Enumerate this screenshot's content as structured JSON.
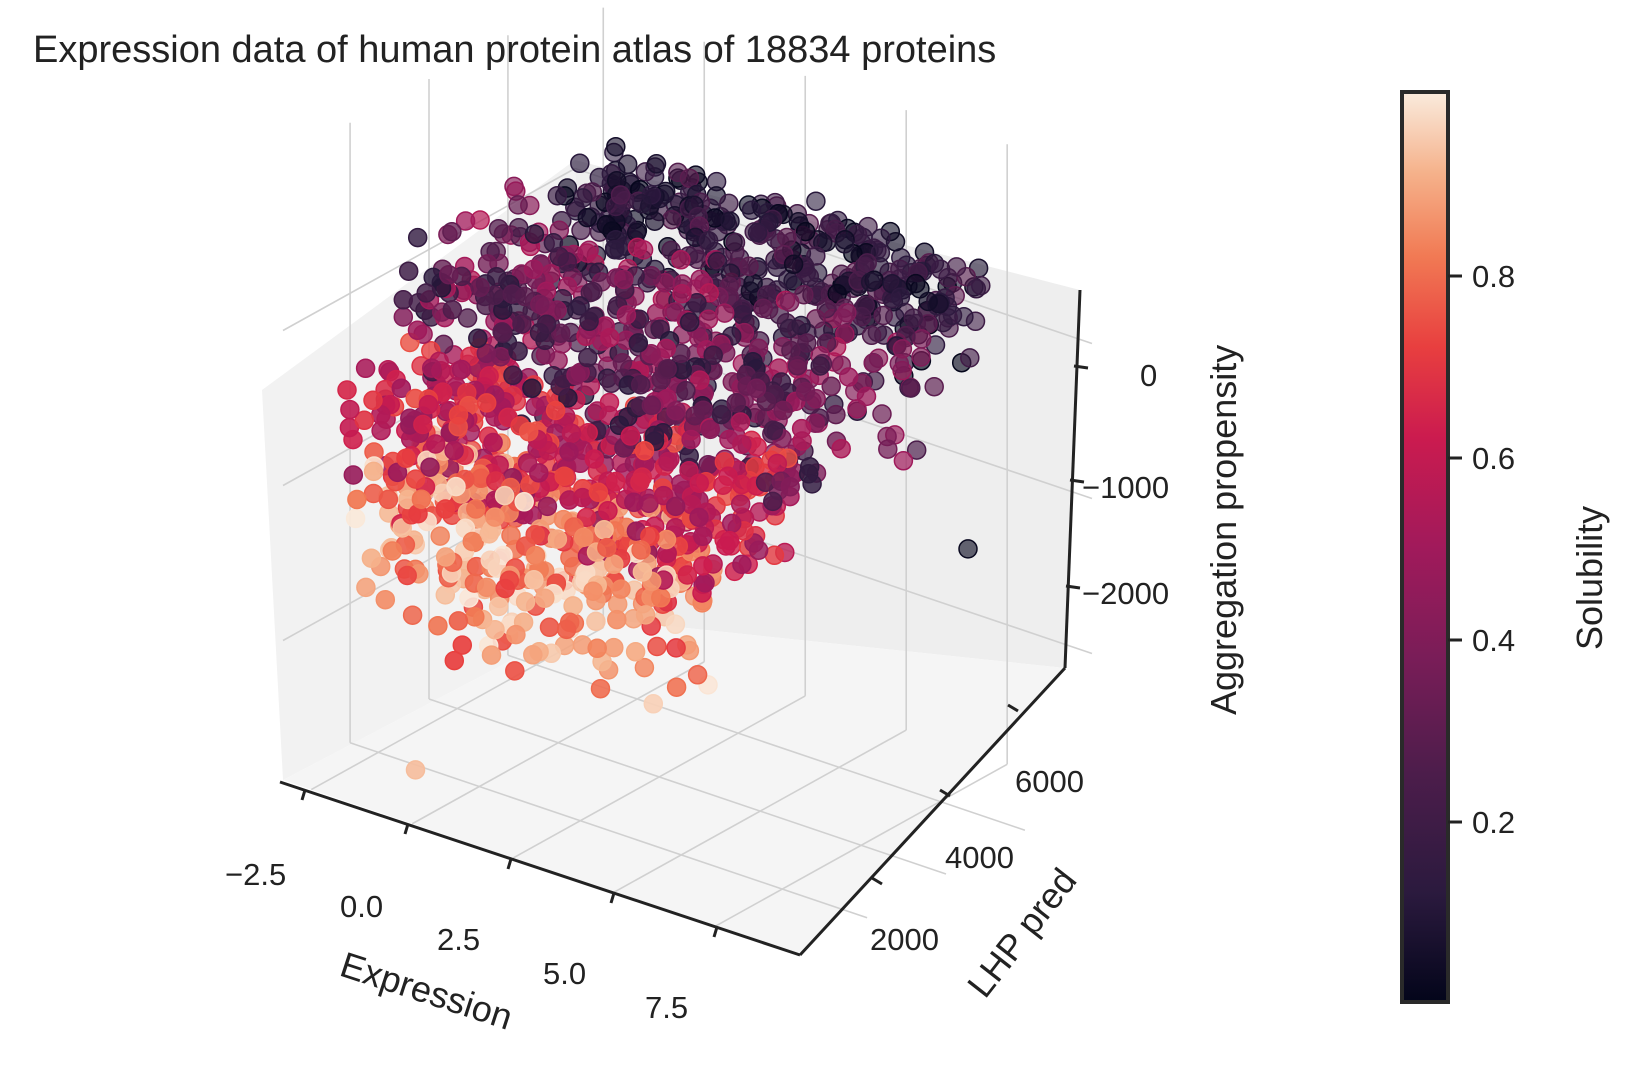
{
  "chart_data": {
    "type": "scatter",
    "dimensions": 3,
    "title": "Expression data of human protein atlas of 18834 proteins",
    "x_axis": {
      "label": "Expression",
      "ticks": [
        "−2.5",
        "0.0",
        "2.5",
        "5.0",
        "7.5"
      ],
      "range": [
        -3.2,
        9.6
      ]
    },
    "y_axis": {
      "label": "LHP pred",
      "ticks": [
        "2000",
        "4000",
        "6000"
      ],
      "range": [
        300,
        7700
      ]
    },
    "z_axis": {
      "label": "Aggregation propensity",
      "ticks": [
        "0",
        "−1000",
        "−2000"
      ],
      "range": [
        -2900,
        1100
      ]
    },
    "colorbar": {
      "label": "Solubility",
      "ticks": [
        "0.2",
        "0.4",
        "0.6",
        "0.8"
      ],
      "range": [
        0.0,
        0.99
      ],
      "colormap": "rocket"
    },
    "grid": true,
    "clusters": [
      {
        "name": "",
        "x_range": [
          -1.5,
          8.0
        ],
        "y_range": [
          5200,
          7000
        ],
        "z_range": [
          -200,
          500
        ],
        "solubility_range": [
          0.0,
          0.3
        ]
      },
      {
        "name": "",
        "x_range": [
          -2.5,
          8.0
        ],
        "y_range": [
          2000,
          5500
        ],
        "z_range": [
          -700,
          300
        ],
        "solubility_range": [
          0.1,
          0.55
        ]
      },
      {
        "name": "",
        "x_range": [
          -2.5,
          6.5
        ],
        "y_range": [
          1000,
          3500
        ],
        "z_range": [
          -1200,
          -300
        ],
        "solubility_range": [
          0.45,
          0.75
        ]
      },
      {
        "name": "",
        "x_range": [
          -2.0,
          5.5
        ],
        "y_range": [
          600,
          2500
        ],
        "z_range": [
          -2000,
          -700
        ],
        "solubility_range": [
          0.7,
          0.99
        ]
      }
    ],
    "outliers": [
      {
        "x": 7.8,
        "y": 6400,
        "z": -1300,
        "solubility": 0.02
      },
      {
        "x": -0.8,
        "y": 1200,
        "z": -2750,
        "solubility": 0.92
      }
    ]
  }
}
